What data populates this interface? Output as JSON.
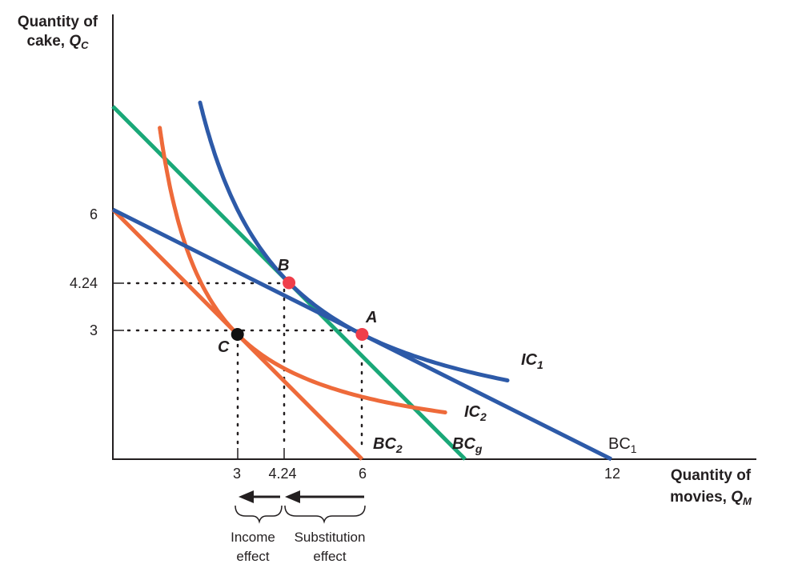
{
  "chart_data": {
    "type": "line",
    "ylabel_line1": "Quantity of",
    "ylabel_line2": "cake, ",
    "ylabel_var": "Q",
    "ylabel_sub": "C",
    "xlabel_line1": "Quantity of",
    "xlabel_line2": "movies, ",
    "xlabel_var": "Q",
    "xlabel_sub": "M",
    "x_ticks": [
      "3",
      "4.24",
      "6",
      "12"
    ],
    "y_ticks": [
      "6",
      "4.24",
      "3"
    ],
    "budget_lines": [
      {
        "name": "BC1",
        "label": "BC",
        "label_sub": "1",
        "color": "#2d5aa8",
        "points": [
          [
            0,
            6
          ],
          [
            12,
            0
          ]
        ]
      },
      {
        "name": "BC2",
        "label": "BC",
        "label_sub": "2",
        "color": "#ee6a3a",
        "points": [
          [
            0,
            6
          ],
          [
            6,
            0
          ]
        ]
      },
      {
        "name": "BCg",
        "label": "BC",
        "label_sub": "g",
        "color": "#1aa878",
        "points": [
          [
            0,
            8.48
          ],
          [
            8.48,
            0
          ]
        ]
      }
    ],
    "indifference_curves": [
      {
        "name": "IC1",
        "label": "IC",
        "label_sub": "1",
        "color": "#2d5aa8",
        "utility": 18,
        "x_range": [
          2.1,
          9.5
        ]
      },
      {
        "name": "IC2",
        "label": "IC",
        "label_sub": "2",
        "color": "#ee6a3a",
        "utility": 9,
        "x_range": [
          1.13,
          8.0
        ]
      }
    ],
    "points": [
      {
        "label": "A",
        "x": 6,
        "y": 3,
        "color": "#ef3e4a"
      },
      {
        "label": "B",
        "x": 4.24,
        "y": 4.24,
        "color": "#ef3e4a"
      },
      {
        "label": "C",
        "x": 3,
        "y": 3,
        "color": "#111111"
      }
    ],
    "effects": [
      {
        "line1": "Income",
        "line2": "effect",
        "from_x": 4.24,
        "to_x": 3
      },
      {
        "line1": "Substitution",
        "line2": "effect",
        "from_x": 6,
        "to_x": 4.24
      }
    ],
    "colors": {
      "axis": "#231f20",
      "dots": "#231f20"
    }
  }
}
